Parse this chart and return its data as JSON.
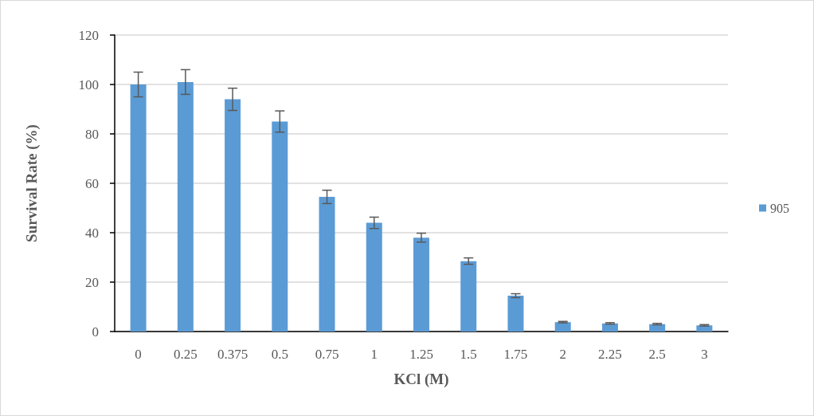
{
  "chart_data": {
    "type": "bar",
    "xlabel": "KCl (M)",
    "ylabel": "Survival Rate (%)",
    "categories": [
      "0",
      "0.25",
      "0.375",
      "0.5",
      "0.75",
      "1",
      "1.25",
      "1.5",
      "1.75",
      "2",
      "2.25",
      "2.5",
      "3"
    ],
    "series": [
      {
        "name": "905",
        "color": "#5b9bd5",
        "values": [
          100,
          101,
          94,
          85,
          54.5,
          44,
          38,
          28.5,
          14.5,
          3.8,
          3.3,
          3,
          2.5
        ],
        "errors": [
          5,
          5,
          4.5,
          4.3,
          2.7,
          2.3,
          1.8,
          1.3,
          0.8,
          0.3,
          0.3,
          0.3,
          0.3
        ]
      }
    ],
    "ylim": [
      0,
      120
    ],
    "yticks": [
      0,
      20,
      40,
      60,
      80,
      100,
      120
    ],
    "grid": "y",
    "legend": "right"
  }
}
